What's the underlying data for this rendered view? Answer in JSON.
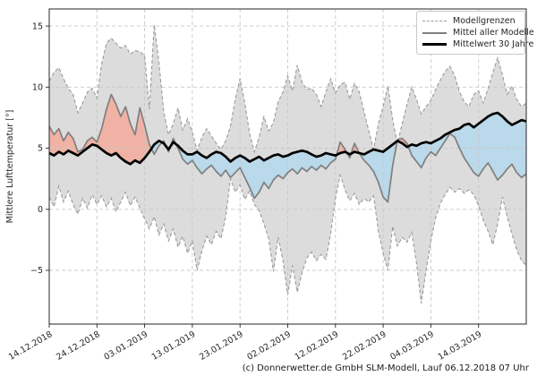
{
  "page": {
    "background": "#ffffff"
  },
  "footer": {
    "credit": "(c) Donnerwetter.de GmbH SLM-Modell, Lauf 06.12.2018 07 Uhr"
  },
  "chart_data": {
    "type": "line",
    "title": "",
    "xlabel": "",
    "ylabel": "Mittlere Lufttemperatur [°]",
    "grid": true,
    "x_axis": {
      "day_span": 100,
      "tick_days": [
        0,
        10,
        20,
        30,
        40,
        50,
        60,
        70,
        80,
        90
      ],
      "tick_labels": [
        "14.12.2018",
        "24.12.2018",
        "03.01.2019",
        "13.01.2019",
        "23.01.2019",
        "02.02.2019",
        "12.02.2019",
        "22.02.2019",
        "04.03.2019",
        "14.03.2019"
      ]
    },
    "y_axis": {
      "ticks": [
        -5,
        0,
        5,
        10,
        15
      ],
      "lim": [
        -9.4,
        16.4
      ]
    },
    "legend": {
      "position": "upper right",
      "entries": [
        {
          "label": "Modellgrenzen",
          "style": "dashed",
          "color": "#9b9b9b"
        },
        {
          "label": "Mittel aller Modelle",
          "style": "solid",
          "color": "#7f7f7f"
        },
        {
          "label": "Mittelwert 30 Jahre",
          "style": "thick",
          "color": "#000000"
        }
      ]
    },
    "fills": {
      "band": "#dcdcdc",
      "above_climate": "#f0b2a4",
      "below_climate": "#bad9ea"
    },
    "series": [
      {
        "name": "Modellgrenzen oben",
        "role": "upper_bound",
        "style": "dashed",
        "color": "#9b9b9b",
        "values": [
          10.5,
          11.2,
          11.6,
          10.7,
          9.9,
          9.4,
          7.9,
          8.7,
          9.6,
          9.9,
          9.1,
          11.9,
          13.6,
          14.0,
          13.6,
          13.2,
          13.4,
          12.7,
          13.0,
          12.9,
          12.6,
          8.2,
          15.1,
          12.0,
          8.0,
          6.1,
          7.0,
          8.3,
          6.5,
          7.4,
          6.3,
          4.8,
          5.9,
          6.6,
          6.0,
          5.4,
          4.9,
          5.6,
          6.8,
          9.0,
          10.7,
          8.7,
          6.2,
          4.7,
          5.9,
          7.6,
          6.4,
          7.1,
          8.8,
          9.6,
          10.9,
          9.7,
          11.8,
          10.4,
          9.8,
          9.9,
          9.4,
          8.4,
          9.6,
          10.7,
          9.5,
          10.2,
          10.4,
          9.0,
          10.3,
          9.6,
          8.0,
          6.4,
          4.9,
          7.0,
          8.4,
          10.1,
          7.3,
          5.4,
          7.0,
          8.6,
          10.0,
          9.0,
          7.8,
          8.4,
          8.9,
          9.8,
          10.6,
          11.3,
          11.7,
          10.9,
          9.6,
          8.8,
          8.4,
          9.4,
          9.7,
          8.7,
          9.9,
          11.2,
          12.4,
          11.0,
          9.4,
          10.1,
          9.0,
          8.4,
          8.7
        ]
      },
      {
        "name": "Modellgrenzen unten",
        "role": "lower_bound",
        "style": "dashed",
        "color": "#9b9b9b",
        "values": [
          1.0,
          0.2,
          1.9,
          0.6,
          1.5,
          0.4,
          -0.4,
          0.9,
          0.1,
          1.2,
          0.4,
          1.1,
          0.2,
          0.9,
          -0.2,
          0.6,
          1.4,
          0.3,
          1.0,
          0.1,
          -0.8,
          -1.6,
          -0.6,
          -2.1,
          -1.2,
          -2.6,
          -1.6,
          -3.1,
          -2.2,
          -3.6,
          -2.6,
          -5.0,
          -3.4,
          -2.2,
          -2.9,
          -1.8,
          -2.4,
          -0.6,
          2.5,
          1.4,
          2.0,
          0.8,
          1.5,
          0.4,
          -0.1,
          -1.2,
          -2.4,
          -5.1,
          -2.3,
          -4.2,
          -7.0,
          -4.6,
          -6.8,
          -5.2,
          -4.0,
          -3.5,
          -4.2,
          -3.7,
          -4.1,
          -2.0,
          0.9,
          2.8,
          1.6,
          0.7,
          1.3,
          0.4,
          0.9,
          0.6,
          1.1,
          -1.8,
          -3.6,
          -5.0,
          -1.4,
          -3.0,
          -2.3,
          -2.7,
          -1.9,
          -4.4,
          -7.7,
          -5.0,
          -2.6,
          -0.7,
          0.5,
          1.2,
          1.8,
          1.4,
          1.7,
          1.3,
          1.6,
          1.2,
          0.3,
          -0.9,
          -1.8,
          -2.9,
          -1.2,
          1.0,
          -0.6,
          -2.0,
          -3.3,
          -4.2,
          -4.6
        ]
      },
      {
        "name": "Mittel aller Modelle",
        "role": "model_mean",
        "style": "solid",
        "color": "#7f7f7f",
        "values": [
          6.8,
          6.1,
          6.6,
          5.6,
          6.3,
          5.8,
          4.7,
          4.9,
          5.6,
          5.9,
          5.5,
          6.6,
          8.2,
          9.4,
          8.6,
          7.6,
          8.4,
          7.0,
          6.1,
          8.3,
          6.9,
          5.3,
          4.5,
          5.2,
          5.6,
          4.7,
          5.8,
          5.0,
          4.1,
          3.7,
          4.0,
          3.4,
          2.9,
          3.3,
          3.6,
          3.1,
          2.7,
          3.2,
          2.6,
          3.0,
          3.4,
          2.6,
          1.8,
          0.9,
          1.4,
          2.2,
          1.7,
          2.4,
          2.8,
          2.5,
          3.0,
          3.3,
          2.9,
          3.4,
          3.1,
          3.5,
          3.2,
          3.6,
          3.3,
          3.8,
          4.1,
          5.5,
          4.9,
          4.2,
          5.4,
          4.6,
          4.0,
          3.6,
          3.1,
          2.2,
          1.0,
          0.6,
          3.6,
          5.7,
          5.8,
          5.4,
          4.4,
          3.9,
          3.4,
          4.2,
          4.7,
          4.4,
          5.0,
          5.6,
          6.2,
          5.9,
          5.0,
          4.2,
          3.6,
          3.0,
          2.7,
          3.3,
          3.8,
          3.1,
          2.4,
          2.8,
          3.3,
          3.7,
          3.0,
          2.6,
          2.9
        ]
      },
      {
        "name": "Mittelwert 30 Jahre",
        "role": "climate_mean",
        "style": "thick",
        "color": "#000000",
        "values": [
          4.6,
          4.4,
          4.7,
          4.5,
          4.8,
          4.6,
          4.4,
          4.7,
          5.0,
          5.3,
          5.2,
          4.9,
          4.6,
          4.4,
          4.6,
          4.2,
          3.9,
          3.7,
          4.0,
          3.8,
          4.2,
          4.7,
          5.3,
          5.6,
          5.4,
          4.9,
          5.5,
          5.2,
          4.8,
          4.5,
          4.5,
          4.7,
          4.4,
          4.2,
          4.5,
          4.7,
          4.6,
          4.3,
          3.9,
          4.2,
          4.4,
          4.2,
          3.9,
          4.1,
          4.3,
          4.0,
          4.2,
          4.4,
          4.5,
          4.3,
          4.4,
          4.6,
          4.7,
          4.8,
          4.7,
          4.5,
          4.3,
          4.4,
          4.6,
          4.5,
          4.4,
          4.6,
          4.7,
          4.5,
          4.7,
          4.6,
          4.5,
          4.7,
          4.9,
          4.8,
          4.7,
          5.0,
          5.3,
          5.6,
          5.4,
          5.1,
          5.3,
          5.2,
          5.4,
          5.5,
          5.4,
          5.6,
          5.8,
          6.1,
          6.3,
          6.5,
          6.6,
          6.9,
          7.0,
          6.7,
          7.0,
          7.3,
          7.6,
          7.8,
          7.9,
          7.6,
          7.2,
          6.9,
          7.1,
          7.3,
          7.2
        ]
      }
    ]
  }
}
